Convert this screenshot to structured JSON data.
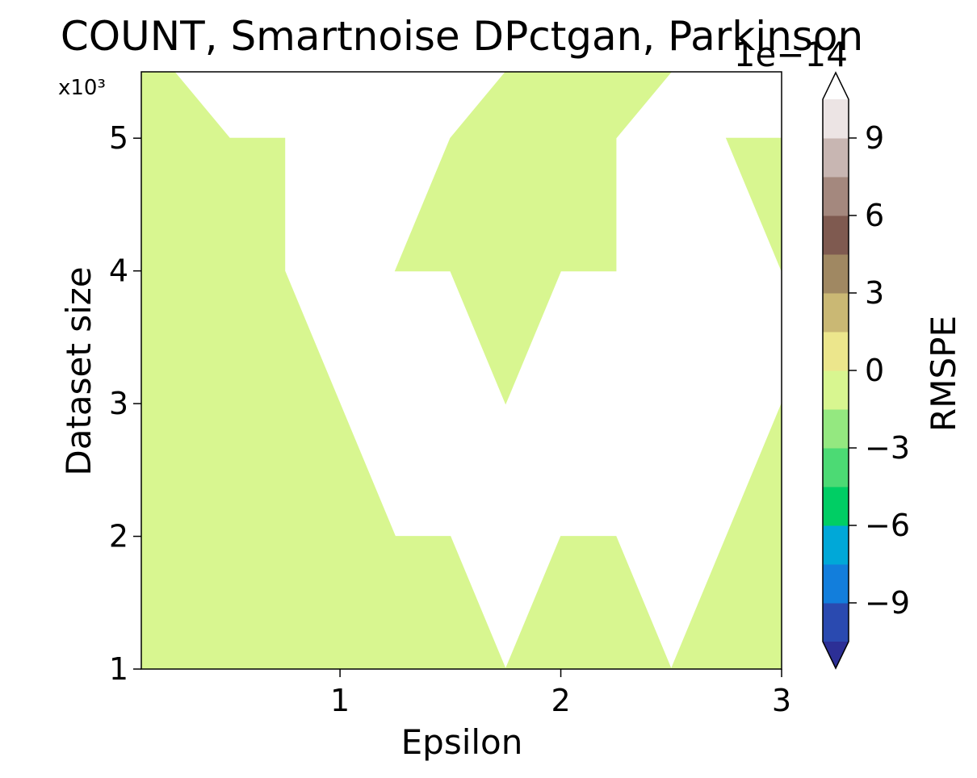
{
  "chart_data": {
    "type": "contourf",
    "title": "COUNT, Smartnoise DPctgan, Parkinson",
    "xlabel": "Epsilon",
    "ylabel": "Dataset size",
    "y_offset_label": "x10³",
    "xlim": [
      0.1,
      3.0
    ],
    "ylim": [
      1,
      5.5
    ],
    "x_ticks": [
      "1",
      "2",
      "3"
    ],
    "y_ticks": [
      "1",
      "2",
      "3",
      "4",
      "5"
    ],
    "colorbar": {
      "label": "RMSPE",
      "exponent_label": "1e−14",
      "ticks": [
        "−9",
        "−6",
        "−3",
        "0",
        "3",
        "6",
        "9"
      ],
      "extend": "both",
      "levels": [
        -10.5,
        -9,
        -7.5,
        -6,
        -4.5,
        -3,
        -1.5,
        0,
        1.5,
        3,
        4.5,
        6,
        7.5,
        9,
        10.5
      ],
      "colors": [
        "#2a4ab0",
        "#127edc",
        "#00a8d8",
        "#00ce64",
        "#4cda74",
        "#94e880",
        "#d8f690",
        "#ece68c",
        "#cab874",
        "#a08862",
        "#7f5a50",
        "#a4887e",
        "#c8b6b2",
        "#ece4e4"
      ],
      "under_color": "#2c2f96",
      "over_color": "#ffffff"
    },
    "fill_color": "#d8f690",
    "background_color": "#ffffff",
    "grid": false
  }
}
